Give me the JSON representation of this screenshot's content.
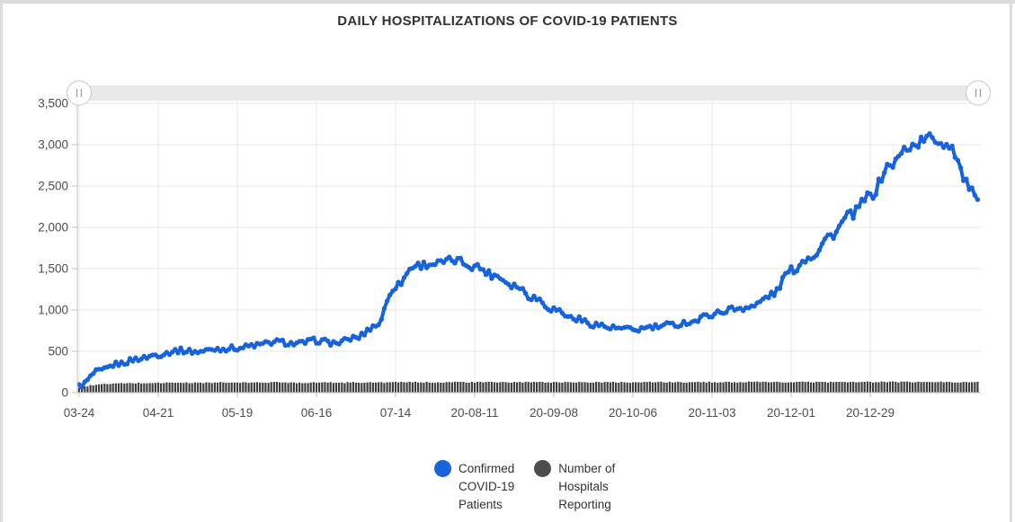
{
  "frame": {
    "border_color": "#dcdcdc",
    "background": "#ffffff"
  },
  "chart_data": {
    "type": "line",
    "title": "DAILY HOSPITALIZATIONS OF COVID-19 PATIENTS",
    "x_axis": {
      "tick_labels": [
        "03-24",
        "04-21",
        "05-19",
        "06-16",
        "07-14",
        "20-08-11",
        "20-09-08",
        "20-10-06",
        "20-11-03",
        "20-12-01",
        "20-12-29"
      ],
      "tick_days": [
        0,
        28,
        56,
        84,
        112,
        140,
        168,
        196,
        224,
        252,
        280
      ],
      "total_days": 318
    },
    "y_axis": {
      "tick_labels": [
        "0",
        "500",
        "1,000",
        "1,500",
        "2,000",
        "2,500",
        "3,000",
        "3,500"
      ],
      "tick_values": [
        0,
        500,
        1000,
        1500,
        2000,
        2500,
        3000,
        3500
      ],
      "ylim": [
        0,
        3500
      ]
    },
    "grid": true,
    "legend_position": "bottom",
    "series": [
      {
        "name": "Confirmed COVID-19 Patients",
        "type": "line",
        "color": "#1663dc",
        "sample_days": [
          0,
          7,
          14,
          21,
          28,
          35,
          42,
          49,
          56,
          63,
          70,
          77,
          84,
          91,
          98,
          105,
          112,
          119,
          126,
          133,
          140,
          147,
          154,
          161,
          168,
          175,
          182,
          189,
          196,
          203,
          210,
          217,
          224,
          231,
          238,
          245,
          252,
          259,
          266,
          273,
          280,
          287,
          294,
          301,
          308,
          315,
          318
        ],
        "values": [
          80,
          260,
          350,
          410,
          460,
          510,
          495,
          530,
          540,
          575,
          615,
          590,
          630,
          600,
          665,
          810,
          1290,
          1540,
          1560,
          1600,
          1530,
          1420,
          1300,
          1150,
          1010,
          900,
          830,
          780,
          760,
          790,
          820,
          860,
          950,
          1010,
          1040,
          1180,
          1480,
          1650,
          1900,
          2150,
          2380,
          2750,
          2980,
          3080,
          3000,
          2500,
          2280
        ]
      },
      {
        "name": "Number of Hospitals Reporting",
        "type": "bar",
        "color": "#3e3e3e",
        "sample_days": [
          0,
          7,
          14,
          21,
          28,
          35,
          42,
          49,
          56,
          63,
          70,
          77,
          84,
          91,
          98,
          105,
          112,
          119,
          126,
          133,
          140,
          147,
          154,
          161,
          168,
          175,
          182,
          189,
          196,
          203,
          210,
          217,
          224,
          231,
          238,
          245,
          252,
          259,
          266,
          273,
          280,
          287,
          294,
          301,
          308,
          315,
          318
        ],
        "values": [
          65,
          100,
          110,
          115,
          118,
          120,
          118,
          122,
          120,
          122,
          125,
          120,
          123,
          121,
          124,
          122,
          125,
          126,
          124,
          127,
          125,
          126,
          124,
          126,
          125,
          127,
          124,
          126,
          125,
          127,
          126,
          125,
          127,
          126,
          128,
          127,
          126,
          128,
          127,
          129,
          128,
          130,
          128,
          129,
          127,
          128,
          126
        ]
      }
    ]
  },
  "legend": {
    "items": [
      {
        "label": "Confirmed\nCOVID-19\nPatients",
        "color": "#1663dc"
      },
      {
        "label": "Number of\nHospitals\nReporting",
        "color": "#4d4d4d"
      }
    ]
  },
  "slider": {
    "handle_glyph": "||"
  },
  "colors": {
    "grid": "#e7e7e7",
    "axis": "#c2c2c2",
    "tick_text": "#4d4d4d",
    "title_text": "#323232"
  }
}
